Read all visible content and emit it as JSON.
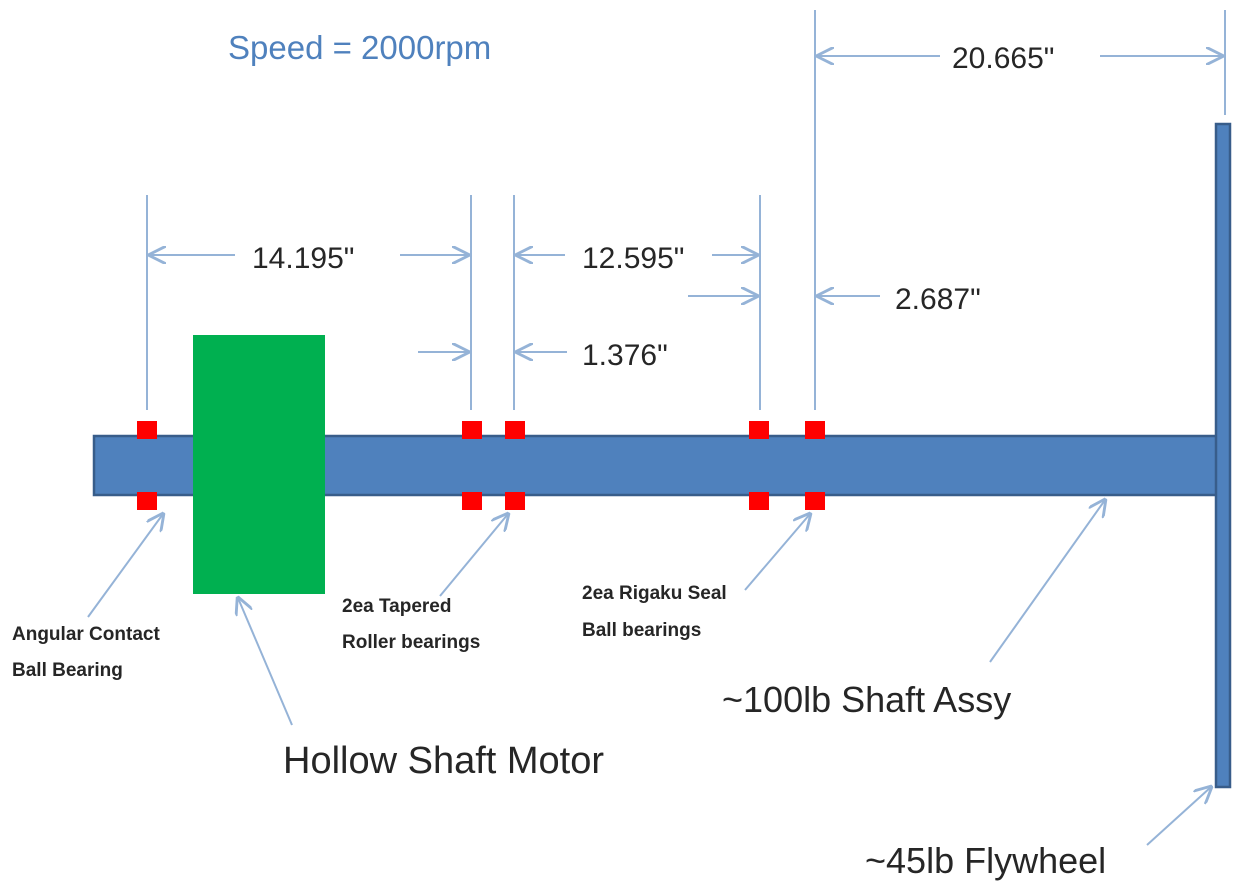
{
  "speed_label": "Speed = 2000rpm",
  "dimensions": {
    "flywheel_offset": "20.665\"",
    "bearing_span_1": "14.195\"",
    "bearing_span_2": "12.595\"",
    "tapered_pair_gap": "1.376\"",
    "seal_to_flywheel_mount": "2.687\""
  },
  "labels": {
    "angular_contact": [
      "Angular Contact",
      "Ball Bearing"
    ],
    "tapered_roller": [
      "2ea Tapered",
      "Roller bearings"
    ],
    "rigaku_seal": [
      "2ea Rigaku Seal",
      "Ball bearings"
    ],
    "motor": "Hollow Shaft Motor",
    "shaft": "~100lb Shaft Assy",
    "flywheel": "~45lb Flywheel"
  },
  "colors": {
    "shaft": "#4f81bd",
    "shaft_stroke": "#385d8a",
    "motor": "#00b050",
    "bearing": "#ff0000",
    "dimension_line": "#95b3d7",
    "speed_text": "#4f81bd",
    "text": "#262626"
  }
}
